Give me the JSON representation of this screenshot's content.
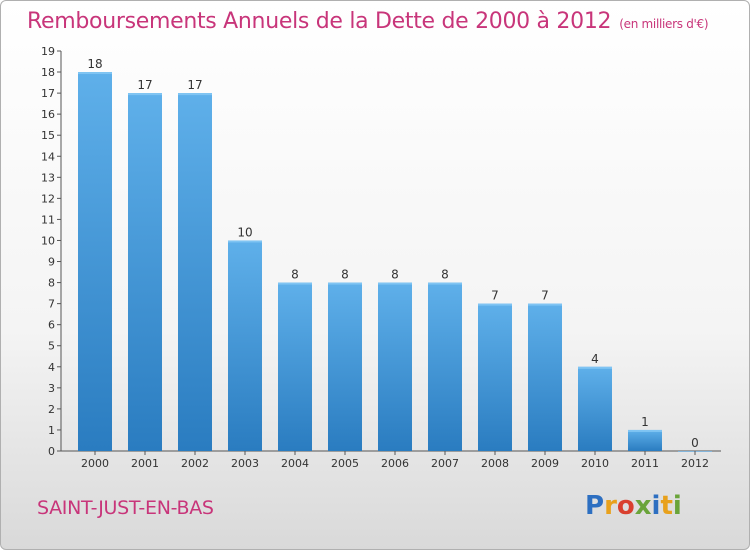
{
  "page": {
    "title": "Remboursements Annuels de la Dette de 2000 à 2012",
    "unit": "(en milliers d'€)",
    "town": "SAINT-JUST-EN-BAS",
    "logo": [
      "P",
      "r",
      "o",
      "x",
      "i",
      "t",
      "i"
    ],
    "logo_colors": [
      "#2d6fc1",
      "#e8a11c",
      "#d9402f",
      "#6aa43a",
      "#2d6fc1",
      "#e8a11c",
      "#6aa43a"
    ]
  },
  "chart_data": {
    "type": "bar",
    "title": "Remboursements Annuels de la Dette de 2000 à 2012",
    "xlabel": "",
    "ylabel": "",
    "categories": [
      "2000",
      "2001",
      "2002",
      "2003",
      "2004",
      "2005",
      "2006",
      "2007",
      "2008",
      "2009",
      "2010",
      "2011",
      "2012"
    ],
    "values": [
      18,
      17,
      17,
      10,
      8,
      8,
      8,
      8,
      7,
      7,
      4,
      1,
      0
    ],
    "ylim": [
      0,
      19
    ],
    "yticks": [
      0,
      1,
      2,
      3,
      4,
      5,
      6,
      7,
      8,
      9,
      10,
      11,
      12,
      13,
      14,
      15,
      16,
      17,
      18,
      19
    ],
    "grid": false,
    "bar_color_top": "#5fb0ea",
    "bar_color_bottom": "#2a7cc0"
  }
}
